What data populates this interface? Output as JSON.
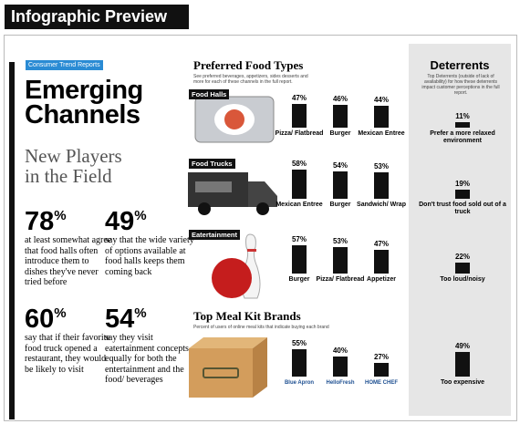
{
  "header": {
    "title": "Infographic Preview"
  },
  "intro": {
    "tag": "Consumer Trend Reports",
    "title_lines": [
      "Emerging",
      "Channels"
    ],
    "subtitle_lines": [
      "New Players",
      "in the Field"
    ],
    "stats": [
      {
        "number": 78,
        "unit": "%",
        "text": "at least somewhat agree that food halls often introduce them to dishes they've never tried before"
      },
      {
        "number": 49,
        "unit": "%",
        "text": "say that the wide variety of options available at food halls keeps them coming back"
      },
      {
        "number": 60,
        "unit": "%",
        "text": "say that if their favorite food truck opened a restaurant, they would be likely to visit"
      },
      {
        "number": 54,
        "unit": "%",
        "text": "say they visit eatertainment concepts equally for both the entertainment and the food/ beverages"
      }
    ]
  },
  "food_types": {
    "title": "Preferred Food Types",
    "subtitle": "See preferred beverages, appetizers, sides desserts and more for each of these channels in the full report.",
    "groups": [
      {
        "name": "Food Halls",
        "categories": [
          "Pizza/ Flatbread",
          "Burger",
          "Mexican Entree"
        ],
        "values": [
          47,
          46,
          44
        ],
        "value_labels": [
          "47%",
          "46%",
          "44%"
        ],
        "deterrent": {
          "label": "Prefer a more relaxed environment",
          "value": 11,
          "value_label": "11%"
        }
      },
      {
        "name": "Food Trucks",
        "categories": [
          "Mexican Entree",
          "Burger",
          "Sandwich/ Wrap"
        ],
        "values": [
          58,
          54,
          53
        ],
        "value_labels": [
          "58%",
          "54%",
          "53%"
        ],
        "deterrent": {
          "label": "Don't trust food sold out of a truck",
          "value": 19,
          "value_label": "19%"
        }
      },
      {
        "name": "Eatertainment",
        "categories": [
          "Burger",
          "Pizza/ Flatbread",
          "Appetizer"
        ],
        "values": [
          57,
          53,
          47
        ],
        "value_labels": [
          "57%",
          "53%",
          "47%"
        ],
        "deterrent": {
          "label": "Too loud/noisy",
          "value": 22,
          "value_label": "22%"
        }
      }
    ]
  },
  "meal_kits": {
    "title": "Top Meal Kit Brands",
    "subtitle": "Percent of users of online meal kits that indicate buying each brand",
    "categories": [
      "Blue Apron",
      "HelloFresh",
      "HOME CHEF"
    ],
    "values": [
      55,
      40,
      27
    ],
    "value_labels": [
      "55%",
      "40%",
      "27%"
    ],
    "deterrent": {
      "label": "Too expensive",
      "value": 49,
      "value_label": "49%"
    }
  },
  "deterrents": {
    "title": "Deterrents",
    "subtitle": "Top Deterrents (outside of lack of availability) for how these deterrents impact customer perceptions in the full report."
  }
}
